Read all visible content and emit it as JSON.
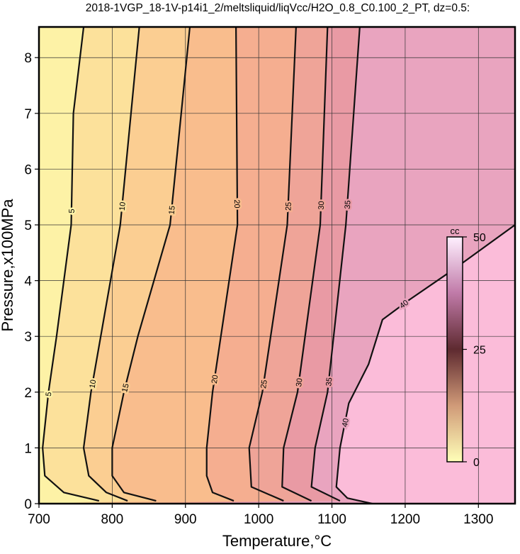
{
  "chart_data": {
    "type": "contour",
    "title": "2018-1VGP_18-1V-p14i1_2/meltsliquid/liqVcc/H2O_0.8_C0.100_2_PT, dz=0.5:",
    "x_label": "Temperature,°C",
    "y_label": "Pressure,x100MPa",
    "xlim": [
      700,
      1350
    ],
    "ylim": [
      0,
      8.55
    ],
    "xticks": [
      700,
      800,
      900,
      1000,
      1100,
      1200,
      1300
    ],
    "yticks": [
      0,
      1,
      2,
      3,
      4,
      5,
      6,
      7,
      8
    ],
    "grid": true,
    "background_color": "#fbbcd9",
    "series": [
      {
        "level": 40,
        "color": "#e9a4bf",
        "x": [
          1350,
          1266,
          1205,
          1169,
          1150,
          1123,
          1111,
          1106,
          1121,
          1155
        ],
        "y": [
          5.0,
          4.2,
          3.65,
          3.3,
          2.5,
          1.8,
          1.0,
          0.3,
          0.1,
          0
        ]
      },
      {
        "level": 35,
        "color": "#e99aa4",
        "x": [
          1138,
          1119,
          1094,
          1077,
          1072,
          1111
        ],
        "y": [
          8.55,
          5.0,
          2.0,
          1.0,
          0.3,
          0.05
        ]
      },
      {
        "level": 30,
        "color": "#efa498",
        "x": [
          1094,
          1084,
          1053,
          1034,
          1032,
          1072
        ],
        "y": [
          8.55,
          5.0,
          2.0,
          1.0,
          0.3,
          0.05
        ]
      },
      {
        "level": 25,
        "color": "#f5ae90",
        "x": [
          1051,
          1039,
          1005,
          987,
          990,
          1034
        ],
        "y": [
          8.55,
          5.0,
          2.0,
          1.0,
          0.3,
          0.05
        ]
      },
      {
        "level": 20,
        "color": "#f9bd8d",
        "x": [
          969,
          971,
          937,
          929,
          929,
          937,
          966
        ],
        "y": [
          8.55,
          5.0,
          2.0,
          1.0,
          0.5,
          0.2,
          0.05
        ]
      },
      {
        "level": 15,
        "color": "#fbce92",
        "x": [
          906,
          879,
          835,
          816,
          800,
          800,
          816,
          860
        ],
        "y": [
          8.55,
          5.0,
          3.0,
          2.0,
          1.0,
          0.5,
          0.2,
          0.05
        ]
      },
      {
        "level": 10,
        "color": "#fce19b",
        "x": [
          837,
          811,
          771,
          761,
          768,
          792,
          821
        ],
        "y": [
          8.55,
          5.0,
          2.0,
          1.0,
          0.5,
          0.2,
          0.05
        ]
      },
      {
        "level": 5,
        "color": "#fdf2a6",
        "x": [
          761,
          747,
          744,
          724,
          713,
          705,
          708,
          734,
          782
        ],
        "y": [
          8.55,
          7.0,
          5.0,
          3.0,
          2.0,
          1.0,
          0.5,
          0.2,
          0.05
        ]
      }
    ],
    "colorbar": {
      "label": "cc",
      "lim": [
        0,
        50
      ],
      "ticks": [
        0,
        25,
        50
      ],
      "colors": [
        "#ffffb8",
        "#d09a78",
        "#5e2a30",
        "#c07aa8",
        "#fff0ff"
      ]
    }
  }
}
